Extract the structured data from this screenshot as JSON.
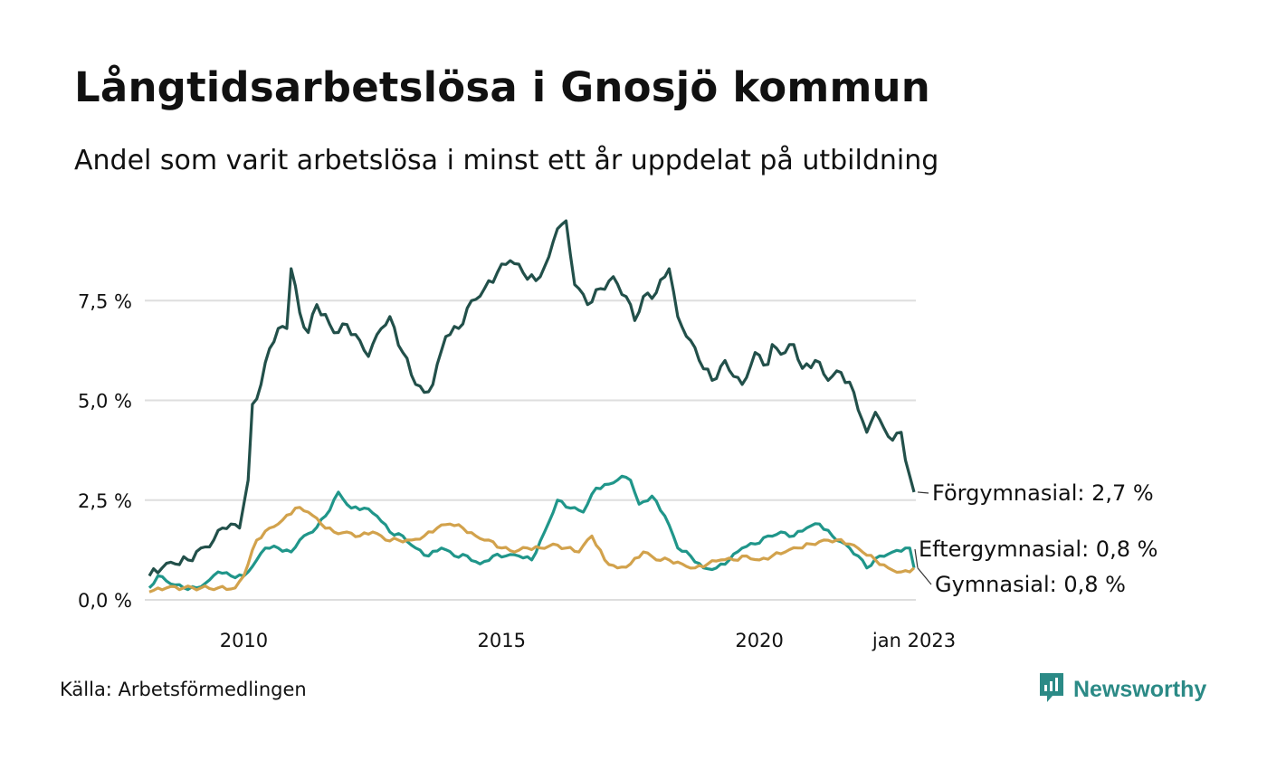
{
  "title": "Långtidsarbetslösa i Gnosjö kommun",
  "subtitle": "Andel som varit arbetslösa i minst ett år uppdelat på utbildning",
  "source": "Källa: Arbetsförmedlingen",
  "brand": {
    "name": "Newsworthy",
    "icon": "newsworthy-logo-icon",
    "color": "#2b8a86"
  },
  "chart_data": {
    "type": "line",
    "x_start": "2008-03",
    "x_end": "2023-01",
    "frequency": "monthly",
    "x_ticks": [
      {
        "date": "2010-01",
        "label": "2010"
      },
      {
        "date": "2015-01",
        "label": "2015"
      },
      {
        "date": "2020-01",
        "label": "2020"
      },
      {
        "date": "2023-01",
        "label": "jan 2023"
      }
    ],
    "y_ticks": [
      {
        "value": 0,
        "label": "0,0 %"
      },
      {
        "value": 2.5,
        "label": "2,5 %"
      },
      {
        "value": 5.0,
        "label": "5,0 %"
      },
      {
        "value": 7.5,
        "label": "7,5 %"
      }
    ],
    "ylim": [
      0,
      9.5
    ],
    "grid": "horizontal",
    "legend": "none (labels at line ends)",
    "series": [
      {
        "label": "Förgymnasial: 2,7 %",
        "color": "#22504a",
        "anchors": [
          [
            "2008-03",
            0.6
          ],
          [
            "2008-06",
            0.8
          ],
          [
            "2008-09",
            0.9
          ],
          [
            "2008-12",
            1.0
          ],
          [
            "2009-03",
            1.3
          ],
          [
            "2009-06",
            1.5
          ],
          [
            "2009-08",
            1.8
          ],
          [
            "2009-10",
            1.9
          ],
          [
            "2009-12",
            1.8
          ],
          [
            "2010-02",
            3.0
          ],
          [
            "2010-03",
            4.9
          ],
          [
            "2010-05",
            5.4
          ],
          [
            "2010-07",
            6.3
          ],
          [
            "2010-09",
            6.8
          ],
          [
            "2010-11",
            6.8
          ],
          [
            "2010-12",
            8.3
          ],
          [
            "2011-02",
            7.2
          ],
          [
            "2011-04",
            6.7
          ],
          [
            "2011-06",
            7.4
          ],
          [
            "2011-09",
            6.9
          ],
          [
            "2011-11",
            6.7
          ],
          [
            "2012-01",
            6.9
          ],
          [
            "2012-04",
            6.5
          ],
          [
            "2012-06",
            6.1
          ],
          [
            "2012-09",
            6.8
          ],
          [
            "2012-11",
            7.1
          ],
          [
            "2013-02",
            6.2
          ],
          [
            "2013-05",
            5.4
          ],
          [
            "2013-07",
            5.2
          ],
          [
            "2013-09",
            5.4
          ],
          [
            "2013-12",
            6.6
          ],
          [
            "2014-03",
            6.8
          ],
          [
            "2014-06",
            7.5
          ],
          [
            "2014-09",
            7.8
          ],
          [
            "2014-12",
            8.2
          ],
          [
            "2015-03",
            8.5
          ],
          [
            "2015-06",
            8.2
          ],
          [
            "2015-09",
            8.0
          ],
          [
            "2015-12",
            8.6
          ],
          [
            "2016-02",
            9.3
          ],
          [
            "2016-04",
            9.5
          ],
          [
            "2016-06",
            7.9
          ],
          [
            "2016-09",
            7.4
          ],
          [
            "2016-12",
            7.8
          ],
          [
            "2017-03",
            8.1
          ],
          [
            "2017-06",
            7.6
          ],
          [
            "2017-08",
            7.0
          ],
          [
            "2017-10",
            7.6
          ],
          [
            "2018-01",
            7.7
          ],
          [
            "2018-04",
            8.3
          ],
          [
            "2018-06",
            7.1
          ],
          [
            "2018-09",
            6.5
          ],
          [
            "2018-11",
            6.0
          ],
          [
            "2019-02",
            5.5
          ],
          [
            "2019-05",
            6.0
          ],
          [
            "2019-07",
            5.6
          ],
          [
            "2019-09",
            5.4
          ],
          [
            "2019-12",
            6.2
          ],
          [
            "2020-03",
            5.9
          ],
          [
            "2020-04",
            6.4
          ],
          [
            "2020-07",
            6.2
          ],
          [
            "2020-09",
            6.4
          ],
          [
            "2020-11",
            5.8
          ],
          [
            "2021-02",
            6.0
          ],
          [
            "2021-05",
            5.5
          ],
          [
            "2021-08",
            5.7
          ],
          [
            "2021-11",
            5.2
          ],
          [
            "2022-02",
            4.2
          ],
          [
            "2022-04",
            4.7
          ],
          [
            "2022-06",
            4.3
          ],
          [
            "2022-08",
            4.0
          ],
          [
            "2022-10",
            4.2
          ],
          [
            "2022-11",
            3.5
          ],
          [
            "2022-12",
            3.1
          ],
          [
            "2023-01",
            2.7
          ]
        ]
      },
      {
        "label": "Eftergymnasial: 0,8 %",
        "color": "#20968a",
        "anchors": [
          [
            "2008-03",
            0.3
          ],
          [
            "2008-05",
            0.6
          ],
          [
            "2008-08",
            0.4
          ],
          [
            "2008-11",
            0.3
          ],
          [
            "2009-02",
            0.3
          ],
          [
            "2009-05",
            0.5
          ],
          [
            "2009-07",
            0.7
          ],
          [
            "2009-10",
            0.6
          ],
          [
            "2010-01",
            0.6
          ],
          [
            "2010-04",
            1.0
          ],
          [
            "2010-06",
            1.3
          ],
          [
            "2010-09",
            1.3
          ],
          [
            "2010-12",
            1.2
          ],
          [
            "2011-02",
            1.5
          ],
          [
            "2011-05",
            1.7
          ],
          [
            "2011-08",
            2.1
          ],
          [
            "2011-11",
            2.7
          ],
          [
            "2012-02",
            2.3
          ],
          [
            "2012-05",
            2.3
          ],
          [
            "2012-08",
            2.1
          ],
          [
            "2012-11",
            1.7
          ],
          [
            "2013-02",
            1.6
          ],
          [
            "2013-05",
            1.3
          ],
          [
            "2013-08",
            1.1
          ],
          [
            "2013-11",
            1.3
          ],
          [
            "2014-02",
            1.1
          ],
          [
            "2014-05",
            1.1
          ],
          [
            "2014-08",
            0.9
          ],
          [
            "2014-11",
            1.1
          ],
          [
            "2015-02",
            1.1
          ],
          [
            "2015-05",
            1.1
          ],
          [
            "2015-08",
            1.0
          ],
          [
            "2015-11",
            1.7
          ],
          [
            "2016-02",
            2.5
          ],
          [
            "2016-05",
            2.3
          ],
          [
            "2016-08",
            2.2
          ],
          [
            "2016-11",
            2.8
          ],
          [
            "2017-02",
            2.9
          ],
          [
            "2017-05",
            3.1
          ],
          [
            "2017-07",
            3.0
          ],
          [
            "2017-09",
            2.4
          ],
          [
            "2017-12",
            2.6
          ],
          [
            "2018-03",
            2.1
          ],
          [
            "2018-06",
            1.3
          ],
          [
            "2018-09",
            1.1
          ],
          [
            "2018-12",
            0.8
          ],
          [
            "2019-03",
            0.8
          ],
          [
            "2019-06",
            1.0
          ],
          [
            "2019-09",
            1.3
          ],
          [
            "2019-12",
            1.4
          ],
          [
            "2020-03",
            1.6
          ],
          [
            "2020-06",
            1.7
          ],
          [
            "2020-09",
            1.6
          ],
          [
            "2020-12",
            1.8
          ],
          [
            "2021-03",
            1.9
          ],
          [
            "2021-06",
            1.6
          ],
          [
            "2021-09",
            1.4
          ],
          [
            "2021-12",
            1.1
          ],
          [
            "2022-02",
            0.8
          ],
          [
            "2022-05",
            1.1
          ],
          [
            "2022-08",
            1.2
          ],
          [
            "2022-11",
            1.3
          ],
          [
            "2022-12",
            1.3
          ],
          [
            "2023-01",
            0.8
          ]
        ]
      },
      {
        "label": "Gymnasial: 0,8 %",
        "color": "#d2a24c",
        "anchors": [
          [
            "2008-03",
            0.2
          ],
          [
            "2008-07",
            0.3
          ],
          [
            "2008-11",
            0.3
          ],
          [
            "2009-03",
            0.3
          ],
          [
            "2009-07",
            0.3
          ],
          [
            "2009-11",
            0.3
          ],
          [
            "2010-01",
            0.6
          ],
          [
            "2010-04",
            1.5
          ],
          [
            "2010-07",
            1.8
          ],
          [
            "2010-10",
            2.0
          ],
          [
            "2011-01",
            2.3
          ],
          [
            "2011-04",
            2.2
          ],
          [
            "2011-07",
            1.9
          ],
          [
            "2011-10",
            1.7
          ],
          [
            "2012-01",
            1.7
          ],
          [
            "2012-04",
            1.6
          ],
          [
            "2012-07",
            1.7
          ],
          [
            "2012-10",
            1.5
          ],
          [
            "2013-01",
            1.5
          ],
          [
            "2013-04",
            1.5
          ],
          [
            "2013-07",
            1.6
          ],
          [
            "2013-10",
            1.8
          ],
          [
            "2014-01",
            1.9
          ],
          [
            "2014-04",
            1.8
          ],
          [
            "2014-07",
            1.6
          ],
          [
            "2014-10",
            1.5
          ],
          [
            "2015-01",
            1.3
          ],
          [
            "2015-04",
            1.2
          ],
          [
            "2015-07",
            1.3
          ],
          [
            "2015-10",
            1.3
          ],
          [
            "2016-01",
            1.4
          ],
          [
            "2016-04",
            1.3
          ],
          [
            "2016-07",
            1.2
          ],
          [
            "2016-10",
            1.6
          ],
          [
            "2017-01",
            1.0
          ],
          [
            "2017-04",
            0.8
          ],
          [
            "2017-07",
            0.9
          ],
          [
            "2017-10",
            1.2
          ],
          [
            "2018-01",
            1.0
          ],
          [
            "2018-04",
            1.0
          ],
          [
            "2018-07",
            0.9
          ],
          [
            "2018-10",
            0.8
          ],
          [
            "2019-01",
            0.9
          ],
          [
            "2019-04",
            1.0
          ],
          [
            "2019-07",
            1.0
          ],
          [
            "2019-10",
            1.1
          ],
          [
            "2020-01",
            1.0
          ],
          [
            "2020-04",
            1.1
          ],
          [
            "2020-07",
            1.2
          ],
          [
            "2020-10",
            1.3
          ],
          [
            "2021-01",
            1.4
          ],
          [
            "2021-04",
            1.5
          ],
          [
            "2021-07",
            1.5
          ],
          [
            "2021-10",
            1.4
          ],
          [
            "2022-01",
            1.2
          ],
          [
            "2022-04",
            1.0
          ],
          [
            "2022-07",
            0.8
          ],
          [
            "2022-10",
            0.7
          ],
          [
            "2022-12",
            0.7
          ],
          [
            "2023-01",
            0.8
          ]
        ]
      }
    ]
  }
}
